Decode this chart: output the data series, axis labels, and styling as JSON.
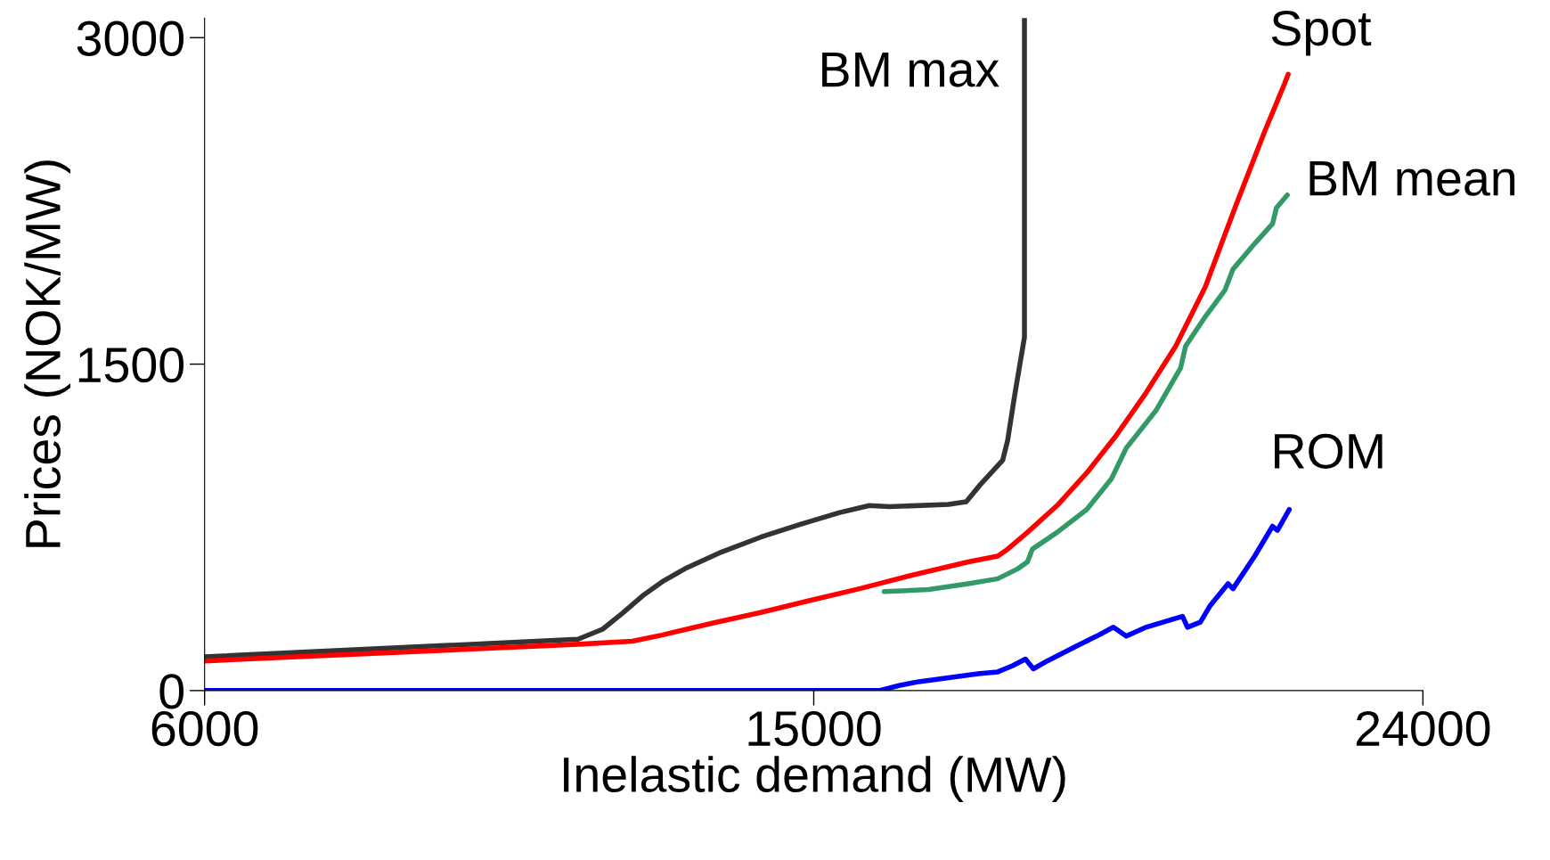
{
  "chart_data": {
    "type": "line",
    "xlabel": "Inelastic demand (MW)",
    "ylabel": "Prices (NOK/MW)",
    "xlim": [
      6000,
      24000
    ],
    "xticks": [
      6000,
      15000,
      24000
    ],
    "ylim": [
      0,
      3090
    ],
    "yticks": [
      0,
      1500,
      3000
    ],
    "grid": false,
    "legend": false,
    "marker": "none",
    "line_style": "solid",
    "series": [
      {
        "name": "BM max",
        "color": "#333333",
        "x": [
          6000,
          11517,
          11881,
          12173,
          12494,
          12786,
          13122,
          13633,
          14217,
          14800,
          15384,
          15822,
          16114,
          16990,
          17253,
          17457,
          17792,
          17865,
          17967,
          18113,
          18113
        ],
        "values": [
          155,
          236,
          282,
          355,
          441,
          505,
          564,
          636,
          705,
          764,
          818,
          850,
          845,
          855,
          868,
          945,
          1059,
          1150,
          1354,
          1623,
          3090
        ]
      },
      {
        "name": "Spot",
        "color": "#ff0000",
        "x": [
          6000,
          11590,
          12319,
          12757,
          13487,
          14217,
          14946,
          15676,
          16406,
          17282,
          17719,
          17865,
          18157,
          18595,
          19033,
          19471,
          19909,
          20347,
          20785,
          21223,
          21661,
          21953,
          22010
        ],
        "values": [
          136,
          214,
          227,
          255,
          309,
          359,
          414,
          468,
          527,
          591,
          618,
          650,
          727,
          850,
          1000,
          1173,
          1368,
          1582,
          1855,
          2218,
          2568,
          2786,
          2832
        ]
      },
      {
        "name": "BM mean",
        "color": "#339966",
        "x": [
          16041,
          16698,
          17282,
          17719,
          18011,
          18157,
          18230,
          18595,
          19033,
          19398,
          19617,
          20055,
          20420,
          20493,
          20785,
          21077,
          21194,
          21515,
          21778,
          21836,
          21997
        ],
        "values": [
          455,
          464,
          491,
          514,
          559,
          591,
          650,
          727,
          832,
          973,
          1114,
          1286,
          1482,
          1582,
          1718,
          1841,
          1936,
          2054,
          2145,
          2218,
          2277
        ]
      },
      {
        "name": "ROM",
        "color": "#0000ff",
        "x": [
          6000,
          15968,
          16260,
          16552,
          16990,
          17428,
          17719,
          17938,
          18128,
          18245,
          18449,
          18887,
          19179,
          19427,
          19617,
          19909,
          20347,
          20449,
          20522,
          20712,
          20858,
          21121,
          21194,
          21515,
          21778,
          21851,
          22026
        ],
        "values": [
          0,
          0,
          23,
          41,
          59,
          77,
          86,
          114,
          145,
          100,
          136,
          205,
          250,
          291,
          250,
          291,
          332,
          341,
          291,
          314,
          391,
          491,
          468,
          618,
          755,
          736,
          832
        ]
      }
    ]
  }
}
